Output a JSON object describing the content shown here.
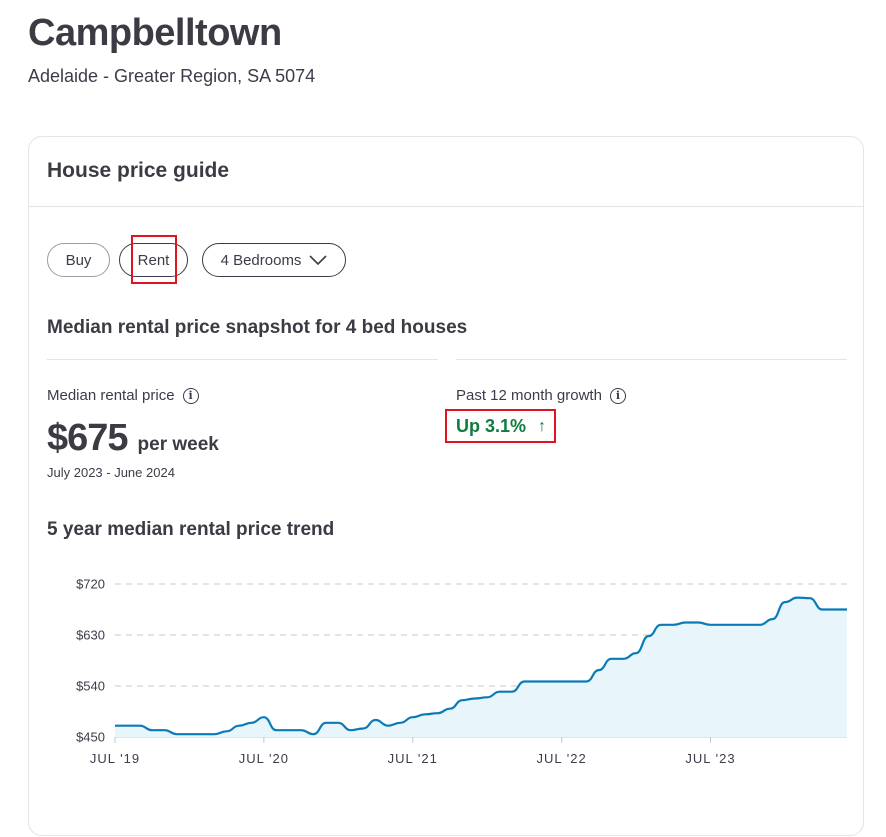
{
  "suburb": {
    "name": "Campbelltown",
    "region": "Adelaide - Greater Region, SA 5074"
  },
  "card": {
    "title": "House price guide",
    "tabs": {
      "buy": "Buy",
      "rent": "Rent",
      "bedrooms": "4 Bedrooms"
    },
    "snapshot_title": "Median rental price snapshot for 4 bed houses",
    "median": {
      "label": "Median rental price",
      "value": "$675",
      "unit": "per week",
      "period": "July 2023 - June 2024"
    },
    "growth": {
      "label": "Past 12 month growth",
      "value": "Up 3.1%",
      "arrow": "↑"
    },
    "trend_title": "5 year median rental price trend"
  },
  "colors": {
    "line": "#0a7ab8",
    "fill": "#e8f6fb",
    "growth_text": "#0f7c3e",
    "highlight": "#e0141f"
  },
  "icons": {
    "info": "info-circle-icon",
    "chevron": "chevron-down-icon",
    "growth": "arrow-up-icon"
  },
  "chart_data": {
    "type": "area",
    "y_ticks": [
      "$720",
      "$630",
      "$540",
      "$450"
    ],
    "x_ticks": [
      "JUL '19",
      "JUL '20",
      "JUL '21",
      "JUL '22",
      "JUL '23"
    ],
    "ylim": [
      450,
      720
    ],
    "xlim": [
      "2019-07",
      "2024-06"
    ],
    "grid": true,
    "series": [
      {
        "values": [
          [
            "2019-07",
            470
          ],
          [
            "2019-08",
            470
          ],
          [
            "2019-09",
            470
          ],
          [
            "2019-10",
            462
          ],
          [
            "2019-11",
            462
          ],
          [
            "2019-12",
            455
          ],
          [
            "2020-01",
            455
          ],
          [
            "2020-02",
            455
          ],
          [
            "2020-03",
            455
          ],
          [
            "2020-04",
            460
          ],
          [
            "2020-05",
            470
          ],
          [
            "2020-06",
            475
          ],
          [
            "2020-07",
            485
          ],
          [
            "2020-08",
            462
          ],
          [
            "2020-09",
            462
          ],
          [
            "2020-10",
            462
          ],
          [
            "2020-11",
            455
          ],
          [
            "2020-12",
            475
          ],
          [
            "2021-01",
            475
          ],
          [
            "2021-02",
            462
          ],
          [
            "2021-03",
            465
          ],
          [
            "2021-04",
            480
          ],
          [
            "2021-05",
            470
          ],
          [
            "2021-06",
            475
          ],
          [
            "2021-07",
            485
          ],
          [
            "2021-08",
            490
          ],
          [
            "2021-09",
            492
          ],
          [
            "2021-10",
            500
          ],
          [
            "2021-11",
            515
          ],
          [
            "2021-12",
            518
          ],
          [
            "2022-01",
            520
          ],
          [
            "2022-02",
            530
          ],
          [
            "2022-03",
            530
          ],
          [
            "2022-04",
            548
          ],
          [
            "2022-05",
            548
          ],
          [
            "2022-06",
            548
          ],
          [
            "2022-07",
            548
          ],
          [
            "2022-08",
            548
          ],
          [
            "2022-09",
            548
          ],
          [
            "2022-10",
            568
          ],
          [
            "2022-11",
            588
          ],
          [
            "2022-12",
            588
          ],
          [
            "2023-01",
            598
          ],
          [
            "2023-02",
            628
          ],
          [
            "2023-03",
            648
          ],
          [
            "2023-04",
            648
          ],
          [
            "2023-05",
            652
          ],
          [
            "2023-06",
            652
          ],
          [
            "2023-07",
            648
          ],
          [
            "2023-08",
            648
          ],
          [
            "2023-09",
            648
          ],
          [
            "2023-10",
            648
          ],
          [
            "2023-11",
            648
          ],
          [
            "2023-12",
            658
          ],
          [
            "2024-01",
            688
          ],
          [
            "2024-02",
            696
          ],
          [
            "2024-03",
            695
          ],
          [
            "2024-04",
            675
          ],
          [
            "2024-05",
            675
          ],
          [
            "2024-06",
            675
          ]
        ]
      }
    ]
  }
}
